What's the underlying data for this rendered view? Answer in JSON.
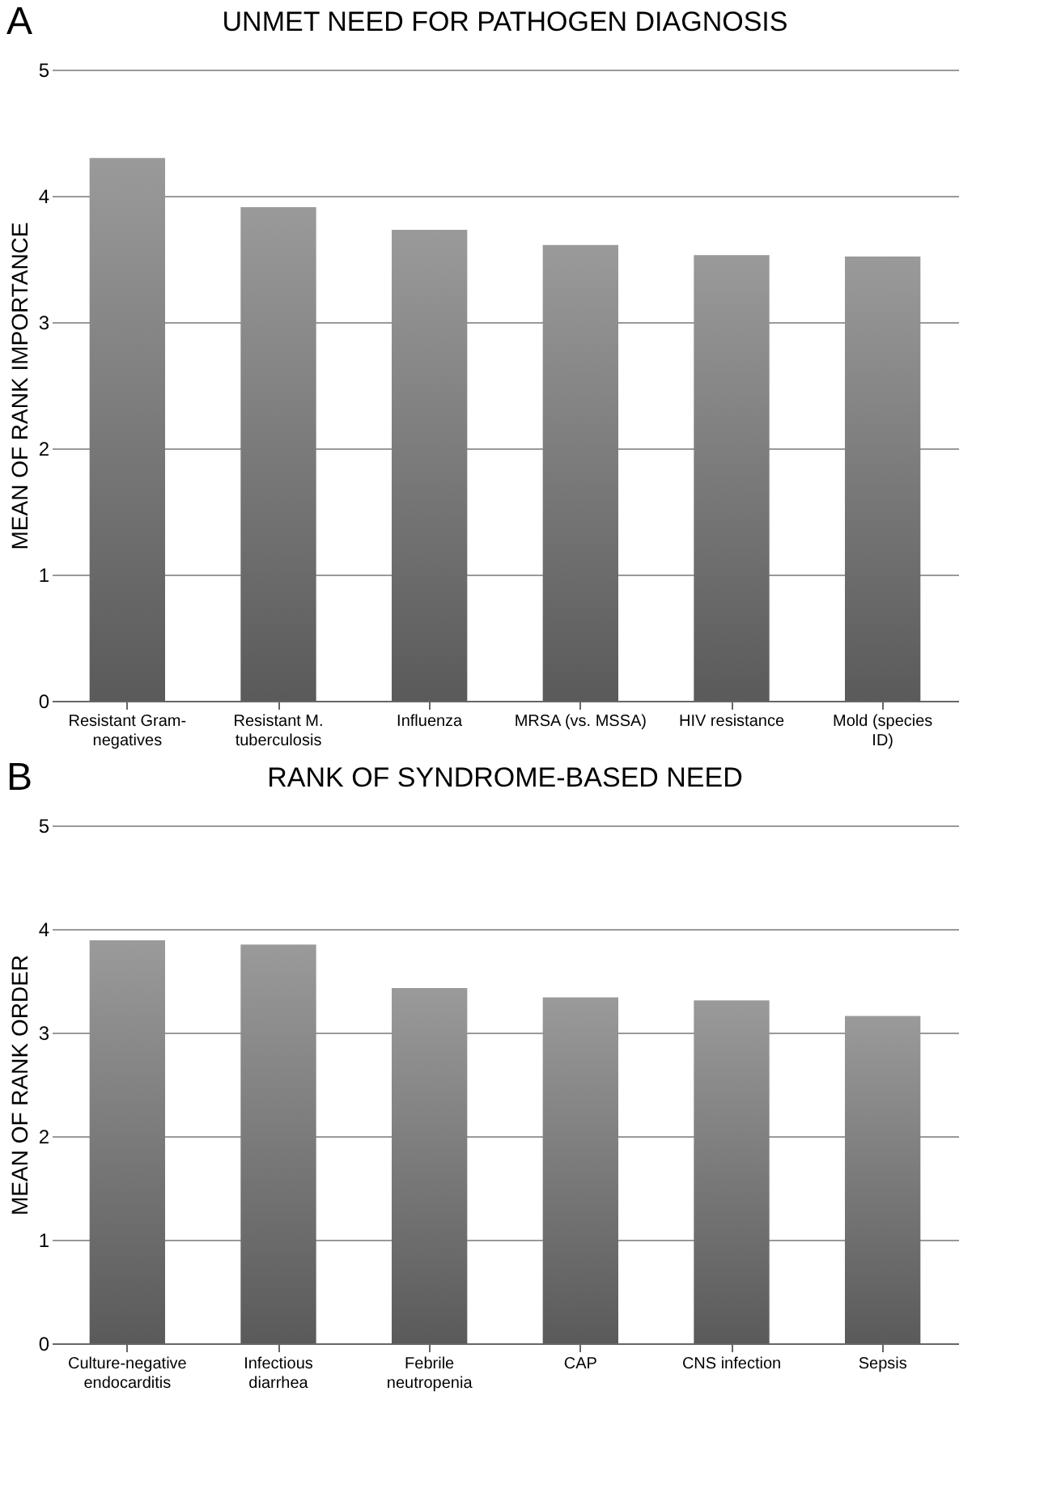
{
  "chart_data": [
    {
      "type": "bar",
      "title": "UNMET NEED FOR PATHOGEN DIAGNOSIS",
      "ylabel": "MEAN OF RANK IMPORTANCE",
      "annotations": [
        "A"
      ],
      "categories": [
        "Resistant Gram-negatives",
        "Resistant M. tuberculosis",
        "Influenza",
        "MRSA (vs. MSSA)",
        "HIV resistance",
        "Mold (species ID)"
      ],
      "values": [
        4.3,
        3.91,
        3.73,
        3.61,
        3.53,
        3.52
      ],
      "color": "#9a9a9a",
      "ylim": [
        0,
        5
      ],
      "yticks": [
        0,
        1,
        2,
        3,
        4,
        5
      ],
      "grid": "y"
    },
    {
      "type": "bar",
      "title": "RANK OF SYNDROME-BASED NEED",
      "ylabel": "MEAN OF RANK ORDER",
      "annotations": [
        "B"
      ],
      "categories": [
        "Culture-negative endocarditis",
        "Infectious diarrhea",
        "Febrile neutropenia",
        "CAP",
        "CNS infection",
        "Sepsis"
      ],
      "values": [
        3.89,
        3.85,
        3.43,
        3.34,
        3.31,
        3.16
      ],
      "color": "#9a9a9a",
      "ylim": [
        0,
        5
      ],
      "yticks": [
        0,
        1,
        2,
        3,
        4,
        5
      ],
      "grid": "y"
    }
  ]
}
